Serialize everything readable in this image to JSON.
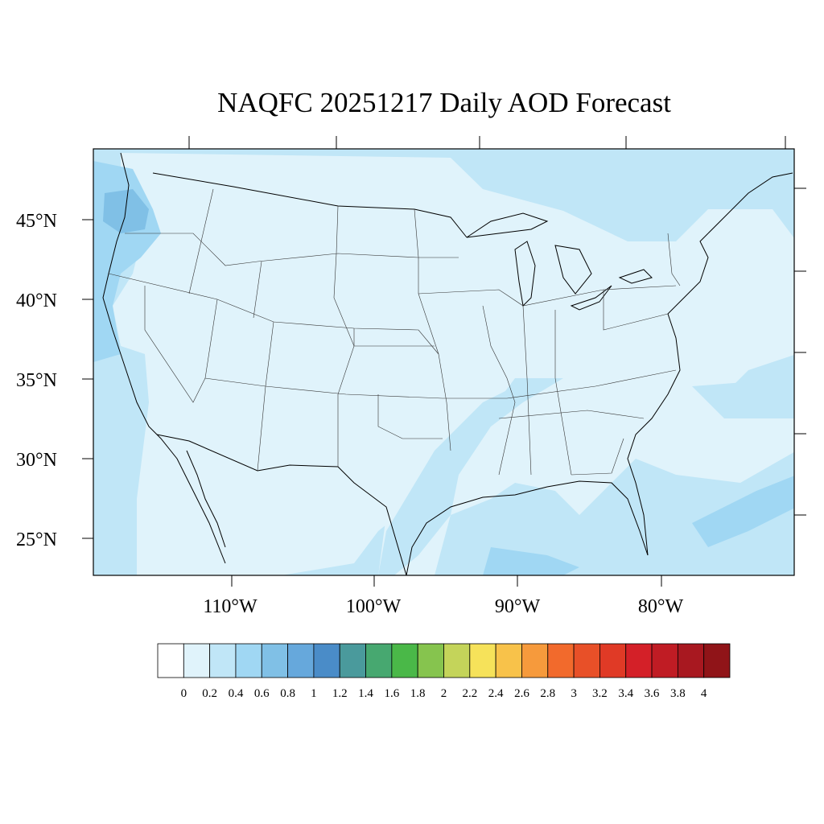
{
  "title": "NAQFC 20251217 Daily AOD Forecast",
  "lat_labels": [
    "45°N",
    "40°N",
    "35°N",
    "30°N",
    "25°N"
  ],
  "lon_labels": [
    "110°W",
    "100°W",
    "90°W",
    "80°W"
  ],
  "colorbar": {
    "labels": [
      "0",
      "0.2",
      "0.4",
      "0.6",
      "0.8",
      "1",
      "1.2",
      "1.4",
      "1.6",
      "1.8",
      "2",
      "2.2",
      "2.4",
      "2.6",
      "2.8",
      "3",
      "3.2",
      "3.4",
      "3.6",
      "3.8",
      "4"
    ],
    "colors": [
      "#ffffff",
      "#e0f3fb",
      "#c0e6f7",
      "#a0d7f3",
      "#80c0e6",
      "#66a8dc",
      "#4a8cc8",
      "#4a9a9c",
      "#47a870",
      "#4ab848",
      "#86c44e",
      "#c4d45a",
      "#f6e25a",
      "#f8c24a",
      "#f69a3c",
      "#f26a2c",
      "#e85028",
      "#e03a26",
      "#d42028",
      "#c01c24",
      "#a81820",
      "#901418"
    ]
  },
  "map_colors": {
    "aod_0_2": "#e0f3fb",
    "aod_0_4": "#c0e6f7",
    "aod_0_6": "#a0d7f3",
    "aod_0_8": "#80c0e6"
  }
}
